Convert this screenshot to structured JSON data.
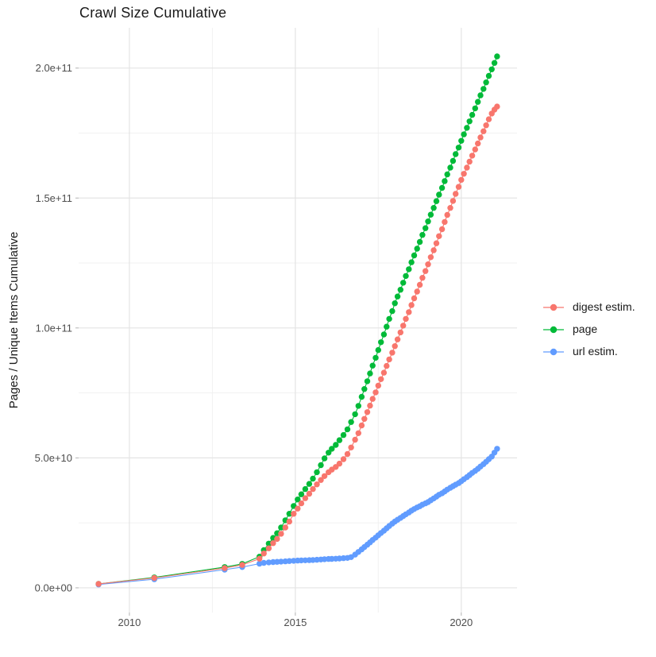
{
  "chart_data": {
    "type": "scatter",
    "title": "Crawl Size Cumulative",
    "xlabel": "",
    "ylabel": "Pages / Unique Items Cumulative",
    "legend_position": "right",
    "grid": true,
    "value_scale_exponent": 10,
    "x_domain": [
      2008.47,
      2021.68
    ],
    "y_domain_e10": [
      -0.95,
      21.55
    ],
    "x_ticks": [
      {
        "value": 2010,
        "label": "2010"
      },
      {
        "value": 2015,
        "label": "2015"
      },
      {
        "value": 2020,
        "label": "2020"
      }
    ],
    "x_minor": [
      2012.5,
      2017.5
    ],
    "y_ticks": [
      {
        "value_e10": 0,
        "label": "0.0e+00"
      },
      {
        "value_e10": 5,
        "label": "5.0e+10"
      },
      {
        "value_e10": 10,
        "label": "1.0e+11"
      },
      {
        "value_e10": 15,
        "label": "1.5e+11"
      },
      {
        "value_e10": 20,
        "label": "2.0e+11"
      }
    ],
    "y_minor_e10": [
      2.5,
      7.5,
      12.5,
      17.5
    ],
    "colors": {
      "digest": "#F8766D",
      "page": "#00BA38",
      "url": "#619CFF",
      "grid_major": "#e4e4e4",
      "grid_minor": "#f1f1f1",
      "axis_tick": "#b3b3b3"
    },
    "series": [
      {
        "name": "digest estim.",
        "color": "#F8766D",
        "points_year_value_e10": [
          [
            2009.07,
            0.15
          ],
          [
            2010.75,
            0.38
          ],
          [
            2012.87,
            0.76
          ],
          [
            2013.4,
            0.88
          ],
          [
            2013.92,
            1.12
          ],
          [
            2014.05,
            1.32
          ],
          [
            2014.2,
            1.52
          ],
          [
            2014.33,
            1.72
          ],
          [
            2014.45,
            1.88
          ],
          [
            2014.57,
            2.08
          ],
          [
            2014.7,
            2.32
          ],
          [
            2014.82,
            2.55
          ],
          [
            2014.95,
            2.85
          ],
          [
            2015.07,
            3.05
          ],
          [
            2015.18,
            3.25
          ],
          [
            2015.3,
            3.45
          ],
          [
            2015.42,
            3.62
          ],
          [
            2015.53,
            3.8
          ],
          [
            2015.65,
            3.98
          ],
          [
            2015.77,
            4.15
          ],
          [
            2015.88,
            4.3
          ],
          [
            2016.0,
            4.45
          ],
          [
            2016.1,
            4.55
          ],
          [
            2016.22,
            4.65
          ],
          [
            2016.33,
            4.78
          ],
          [
            2016.45,
            4.95
          ],
          [
            2016.57,
            5.15
          ],
          [
            2016.68,
            5.4
          ],
          [
            2016.8,
            5.7
          ],
          [
            2016.9,
            5.95
          ],
          [
            2017.0,
            6.25
          ],
          [
            2017.08,
            6.5
          ],
          [
            2017.17,
            6.76
          ],
          [
            2017.25,
            7.01
          ],
          [
            2017.33,
            7.27
          ],
          [
            2017.42,
            7.52
          ],
          [
            2017.5,
            7.78
          ],
          [
            2017.58,
            8.03
          ],
          [
            2017.67,
            8.28
          ],
          [
            2017.75,
            8.54
          ],
          [
            2017.83,
            8.79
          ],
          [
            2017.92,
            9.05
          ],
          [
            2018.0,
            9.3
          ],
          [
            2018.08,
            9.56
          ],
          [
            2018.17,
            9.83
          ],
          [
            2018.25,
            10.09
          ],
          [
            2018.33,
            10.35
          ],
          [
            2018.42,
            10.61
          ],
          [
            2018.5,
            10.88
          ],
          [
            2018.58,
            11.14
          ],
          [
            2018.67,
            11.4
          ],
          [
            2018.75,
            11.66
          ],
          [
            2018.83,
            11.93
          ],
          [
            2018.92,
            12.19
          ],
          [
            2019.0,
            12.45
          ],
          [
            2019.08,
            12.72
          ],
          [
            2019.17,
            12.99
          ],
          [
            2019.25,
            13.26
          ],
          [
            2019.33,
            13.53
          ],
          [
            2019.42,
            13.8
          ],
          [
            2019.5,
            14.08
          ],
          [
            2019.58,
            14.35
          ],
          [
            2019.67,
            14.62
          ],
          [
            2019.75,
            14.89
          ],
          [
            2019.83,
            15.16
          ],
          [
            2019.92,
            15.43
          ],
          [
            2020.0,
            15.7
          ],
          [
            2020.08,
            15.93
          ],
          [
            2020.17,
            16.17
          ],
          [
            2020.25,
            16.4
          ],
          [
            2020.33,
            16.63
          ],
          [
            2020.42,
            16.87
          ],
          [
            2020.5,
            17.1
          ],
          [
            2020.58,
            17.33
          ],
          [
            2020.67,
            17.57
          ],
          [
            2020.75,
            17.8
          ],
          [
            2020.83,
            18.03
          ],
          [
            2020.92,
            18.25
          ],
          [
            2021.0,
            18.4
          ],
          [
            2021.08,
            18.52
          ]
        ]
      },
      {
        "name": "page",
        "color": "#00BA38",
        "points_year_value_e10": [
          [
            2009.07,
            0.15
          ],
          [
            2010.75,
            0.4
          ],
          [
            2012.87,
            0.8
          ],
          [
            2013.4,
            0.92
          ],
          [
            2013.92,
            1.2
          ],
          [
            2014.05,
            1.45
          ],
          [
            2014.2,
            1.7
          ],
          [
            2014.33,
            1.92
          ],
          [
            2014.45,
            2.1
          ],
          [
            2014.57,
            2.32
          ],
          [
            2014.7,
            2.6
          ],
          [
            2014.82,
            2.85
          ],
          [
            2014.95,
            3.15
          ],
          [
            2015.07,
            3.4
          ],
          [
            2015.18,
            3.6
          ],
          [
            2015.3,
            3.8
          ],
          [
            2015.42,
            4.0
          ],
          [
            2015.53,
            4.2
          ],
          [
            2015.65,
            4.45
          ],
          [
            2015.77,
            4.72
          ],
          [
            2015.88,
            4.98
          ],
          [
            2016.0,
            5.2
          ],
          [
            2016.1,
            5.35
          ],
          [
            2016.22,
            5.5
          ],
          [
            2016.33,
            5.68
          ],
          [
            2016.45,
            5.88
          ],
          [
            2016.57,
            6.1
          ],
          [
            2016.68,
            6.38
          ],
          [
            2016.8,
            6.68
          ],
          [
            2016.9,
            7.0
          ],
          [
            2017.0,
            7.35
          ],
          [
            2017.08,
            7.65
          ],
          [
            2017.17,
            7.95
          ],
          [
            2017.25,
            8.25
          ],
          [
            2017.33,
            8.55
          ],
          [
            2017.42,
            8.85
          ],
          [
            2017.5,
            9.15
          ],
          [
            2017.58,
            9.45
          ],
          [
            2017.67,
            9.75
          ],
          [
            2017.75,
            10.05
          ],
          [
            2017.83,
            10.35
          ],
          [
            2017.92,
            10.65
          ],
          [
            2018.0,
            10.95
          ],
          [
            2018.08,
            11.21
          ],
          [
            2018.17,
            11.47
          ],
          [
            2018.25,
            11.74
          ],
          [
            2018.33,
            12.0
          ],
          [
            2018.42,
            12.26
          ],
          [
            2018.5,
            12.53
          ],
          [
            2018.58,
            12.79
          ],
          [
            2018.67,
            13.05
          ],
          [
            2018.75,
            13.31
          ],
          [
            2018.83,
            13.58
          ],
          [
            2018.92,
            13.84
          ],
          [
            2019.0,
            14.1
          ],
          [
            2019.08,
            14.36
          ],
          [
            2019.17,
            14.62
          ],
          [
            2019.25,
            14.88
          ],
          [
            2019.33,
            15.13
          ],
          [
            2019.42,
            15.39
          ],
          [
            2019.5,
            15.65
          ],
          [
            2019.58,
            15.91
          ],
          [
            2019.67,
            16.17
          ],
          [
            2019.75,
            16.43
          ],
          [
            2019.83,
            16.69
          ],
          [
            2019.92,
            16.94
          ],
          [
            2020.0,
            17.2
          ],
          [
            2020.08,
            17.45
          ],
          [
            2020.17,
            17.7
          ],
          [
            2020.25,
            17.95
          ],
          [
            2020.33,
            18.2
          ],
          [
            2020.42,
            18.45
          ],
          [
            2020.5,
            18.7
          ],
          [
            2020.58,
            18.95
          ],
          [
            2020.67,
            19.2
          ],
          [
            2020.75,
            19.45
          ],
          [
            2020.83,
            19.7
          ],
          [
            2020.92,
            19.95
          ],
          [
            2021.0,
            20.2
          ],
          [
            2021.08,
            20.45
          ]
        ]
      },
      {
        "name": "url estim.",
        "color": "#619CFF",
        "points_year_value_e10": [
          [
            2009.07,
            0.13
          ],
          [
            2010.75,
            0.33
          ],
          [
            2012.87,
            0.7
          ],
          [
            2013.4,
            0.8
          ],
          [
            2013.92,
            0.93
          ],
          [
            2014.05,
            0.96
          ],
          [
            2014.2,
            0.98
          ],
          [
            2014.33,
            0.99
          ],
          [
            2014.45,
            1.0
          ],
          [
            2014.57,
            1.01
          ],
          [
            2014.7,
            1.02
          ],
          [
            2014.82,
            1.03
          ],
          [
            2014.95,
            1.04
          ],
          [
            2015.07,
            1.05
          ],
          [
            2015.18,
            1.055
          ],
          [
            2015.3,
            1.06
          ],
          [
            2015.42,
            1.065
          ],
          [
            2015.53,
            1.07
          ],
          [
            2015.65,
            1.08
          ],
          [
            2015.77,
            1.09
          ],
          [
            2015.88,
            1.1
          ],
          [
            2016.0,
            1.11
          ],
          [
            2016.1,
            1.115
          ],
          [
            2016.22,
            1.12
          ],
          [
            2016.33,
            1.13
          ],
          [
            2016.45,
            1.14
          ],
          [
            2016.57,
            1.15
          ],
          [
            2016.68,
            1.18
          ],
          [
            2016.8,
            1.28
          ],
          [
            2016.9,
            1.38
          ],
          [
            2017.0,
            1.48
          ],
          [
            2017.08,
            1.57
          ],
          [
            2017.17,
            1.66
          ],
          [
            2017.25,
            1.75
          ],
          [
            2017.33,
            1.84
          ],
          [
            2017.42,
            1.93
          ],
          [
            2017.5,
            2.02
          ],
          [
            2017.58,
            2.11
          ],
          [
            2017.67,
            2.2
          ],
          [
            2017.75,
            2.29
          ],
          [
            2017.83,
            2.38
          ],
          [
            2017.92,
            2.47
          ],
          [
            2018.0,
            2.55
          ],
          [
            2018.08,
            2.62
          ],
          [
            2018.17,
            2.69
          ],
          [
            2018.25,
            2.76
          ],
          [
            2018.33,
            2.83
          ],
          [
            2018.42,
            2.9
          ],
          [
            2018.5,
            2.97
          ],
          [
            2018.58,
            3.03
          ],
          [
            2018.67,
            3.09
          ],
          [
            2018.75,
            3.14
          ],
          [
            2018.83,
            3.2
          ],
          [
            2018.92,
            3.25
          ],
          [
            2019.0,
            3.3
          ],
          [
            2019.08,
            3.37
          ],
          [
            2019.17,
            3.44
          ],
          [
            2019.25,
            3.51
          ],
          [
            2019.33,
            3.58
          ],
          [
            2019.42,
            3.64
          ],
          [
            2019.5,
            3.71
          ],
          [
            2019.58,
            3.78
          ],
          [
            2019.67,
            3.85
          ],
          [
            2019.75,
            3.91
          ],
          [
            2019.83,
            3.97
          ],
          [
            2019.92,
            4.03
          ],
          [
            2020.0,
            4.1
          ],
          [
            2020.08,
            4.18
          ],
          [
            2020.17,
            4.26
          ],
          [
            2020.25,
            4.34
          ],
          [
            2020.33,
            4.42
          ],
          [
            2020.42,
            4.5
          ],
          [
            2020.5,
            4.58
          ],
          [
            2020.58,
            4.67
          ],
          [
            2020.67,
            4.76
          ],
          [
            2020.75,
            4.85
          ],
          [
            2020.83,
            4.95
          ],
          [
            2020.92,
            5.05
          ],
          [
            2021.0,
            5.2
          ],
          [
            2021.08,
            5.35
          ]
        ]
      }
    ]
  }
}
